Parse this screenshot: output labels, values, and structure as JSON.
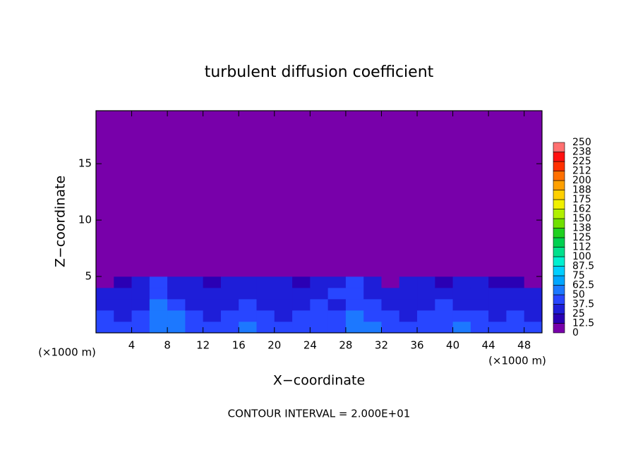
{
  "chart_data": {
    "type": "contour",
    "title": "turbulent diffusion coefficient",
    "x_label": "X−coordinate",
    "y_label": "Z−coordinate",
    "x_unit": "(×1000 m)",
    "y_unit": "(×1000 m)",
    "annotation": "CONTOUR INTERVAL = 2.000E+01",
    "xlim": [
      0,
      50
    ],
    "xticks": [
      4,
      8,
      12,
      16,
      20,
      24,
      28,
      32,
      36,
      40,
      44,
      48
    ],
    "ylim": [
      0,
      19.7
    ],
    "yticks": [
      5,
      10,
      15
    ],
    "x": [
      1,
      3,
      5,
      7,
      9,
      11,
      13,
      15,
      17,
      19,
      21,
      23,
      25,
      27,
      29,
      31,
      33,
      35,
      37,
      39,
      41,
      43,
      45,
      47,
      49
    ],
    "y": [
      0.5,
      1.5,
      2.5,
      3.5,
      4.5,
      5.5
    ],
    "z": [
      [
        45,
        45,
        40,
        60,
        60,
        45,
        40,
        45,
        50,
        45,
        40,
        45,
        40,
        45,
        55,
        50,
        45,
        40,
        45,
        45,
        50,
        45,
        40,
        45,
        40
      ],
      [
        40,
        35,
        40,
        55,
        50,
        40,
        35,
        40,
        45,
        40,
        35,
        40,
        45,
        40,
        50,
        45,
        40,
        35,
        40,
        45,
        40,
        40,
        35,
        40,
        35
      ],
      [
        35,
        30,
        35,
        50,
        40,
        35,
        30,
        35,
        40,
        35,
        30,
        35,
        40,
        35,
        45,
        40,
        35,
        30,
        35,
        40,
        35,
        35,
        30,
        35,
        30
      ],
      [
        30,
        35,
        30,
        45,
        35,
        30,
        25,
        30,
        35,
        30,
        30,
        30,
        35,
        40,
        45,
        35,
        30,
        25,
        30,
        35,
        30,
        30,
        30,
        35,
        30
      ],
      [
        10,
        20,
        30,
        40,
        30,
        25,
        15,
        25,
        30,
        30,
        25,
        15,
        25,
        30,
        40,
        30,
        10,
        25,
        25,
        20,
        30,
        25,
        20,
        15,
        10
      ],
      [
        0,
        0,
        0,
        5,
        0,
        0,
        0,
        0,
        0,
        0,
        0,
        0,
        0,
        0,
        0,
        0,
        0,
        0,
        0,
        0,
        0,
        0,
        0,
        0,
        0
      ]
    ],
    "colorbar_ticks": [
      0,
      12.5,
      25,
      37.5,
      50,
      62.5,
      75,
      87.5,
      100,
      {
        "value": 112.5,
        "label": "112"
      },
      125,
      {
        "value": 137.5,
        "label": "138"
      },
      150,
      {
        "value": 162.5,
        "label": "162"
      },
      175,
      {
        "value": 187.5,
        "label": "188"
      },
      200,
      {
        "value": 212.5,
        "label": "212"
      },
      225,
      {
        "value": 237.5,
        "label": "238"
      },
      250
    ],
    "colors": [
      "#7800aa",
      "#2a00b4",
      "#1e1ed8",
      "#2846ff",
      "#1c78ff",
      "#00a6ff",
      "#00cfff",
      "#00f0d0",
      "#00e08c",
      "#00d050",
      "#20d020",
      "#70e000",
      "#b0f000",
      "#f0f000",
      "#ffd000",
      "#ffa000",
      "#ff7000",
      "#ff3000",
      "#ff1010",
      "#ff7070"
    ]
  }
}
